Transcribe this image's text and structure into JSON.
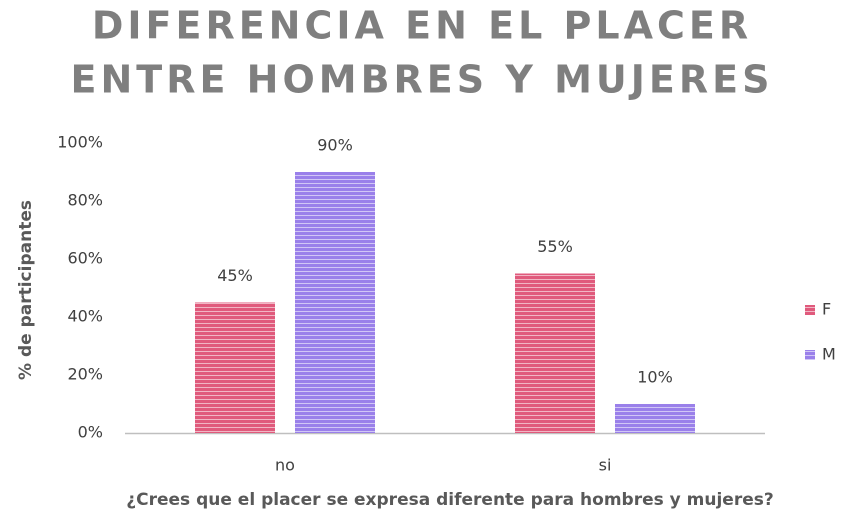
{
  "chart_data": {
    "type": "bar",
    "title": [
      "DIFERENCIA EN EL PLACER",
      "ENTRE HOMBRES Y MUJERES"
    ],
    "x_label": "¿Crees que el placer se expresa diferente para hombres y mujeres?",
    "y_label": "% de participantes",
    "categories": [
      "no",
      "si"
    ],
    "series": [
      {
        "name": "F",
        "color": "#e05a7c",
        "values": [
          45,
          55
        ],
        "value_labels": [
          "45%",
          "55%"
        ]
      },
      {
        "name": "M",
        "color": "#9a80ea",
        "values": [
          90,
          10
        ],
        "value_labels": [
          "90%",
          "10%"
        ]
      }
    ],
    "ylim": [
      0,
      100
    ],
    "yticks": [
      {
        "value": 0,
        "label": "0%"
      },
      {
        "value": 20,
        "label": "20%"
      },
      {
        "value": 40,
        "label": "40%"
      },
      {
        "value": 60,
        "label": "60%"
      },
      {
        "value": 80,
        "label": "80%"
      },
      {
        "value": 100,
        "label": "100%"
      }
    ],
    "grid": false,
    "legend": "right"
  }
}
